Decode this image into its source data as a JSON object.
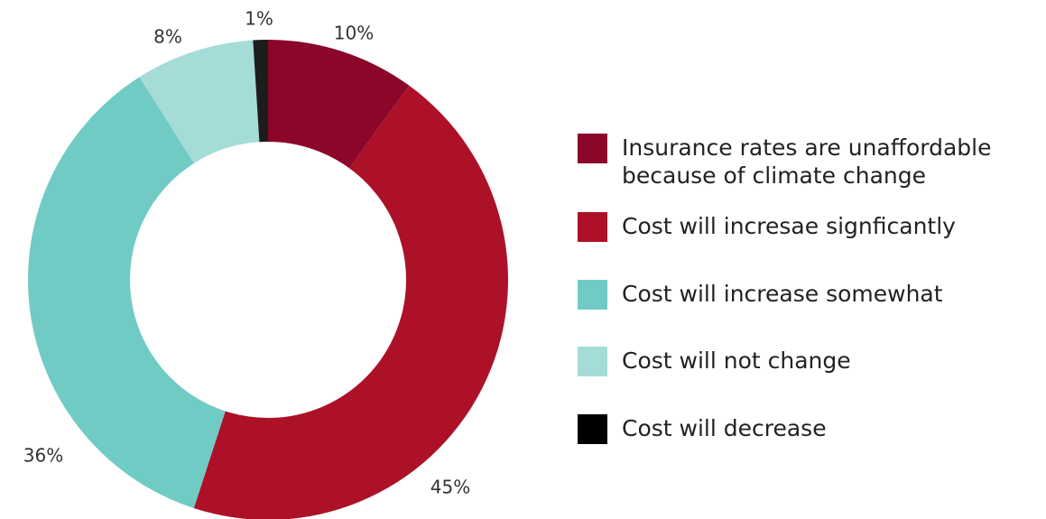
{
  "chart_data": {
    "type": "pie",
    "variant": "donut",
    "categories": [
      "Insurance rates are unaffordable\nbecause of climate change",
      "Cost will incresae signficantly",
      "Cost will increase somewhat",
      "Cost will not change",
      "Cost will decrease"
    ],
    "values": [
      10,
      45,
      36,
      8,
      1
    ],
    "data_labels": [
      "10%",
      "45%",
      "36%",
      "8%",
      "1%"
    ],
    "colors": [
      "#8b0628",
      "#ad1128",
      "#71cbc5",
      "#a5dcd7",
      "#1c1c1c"
    ],
    "legend_colors": [
      "#8b0628",
      "#ad1128",
      "#71cbc5",
      "#a5dcd7",
      "#000000"
    ],
    "legend_position": "right",
    "title": "",
    "xlabel": "",
    "ylabel": ""
  }
}
